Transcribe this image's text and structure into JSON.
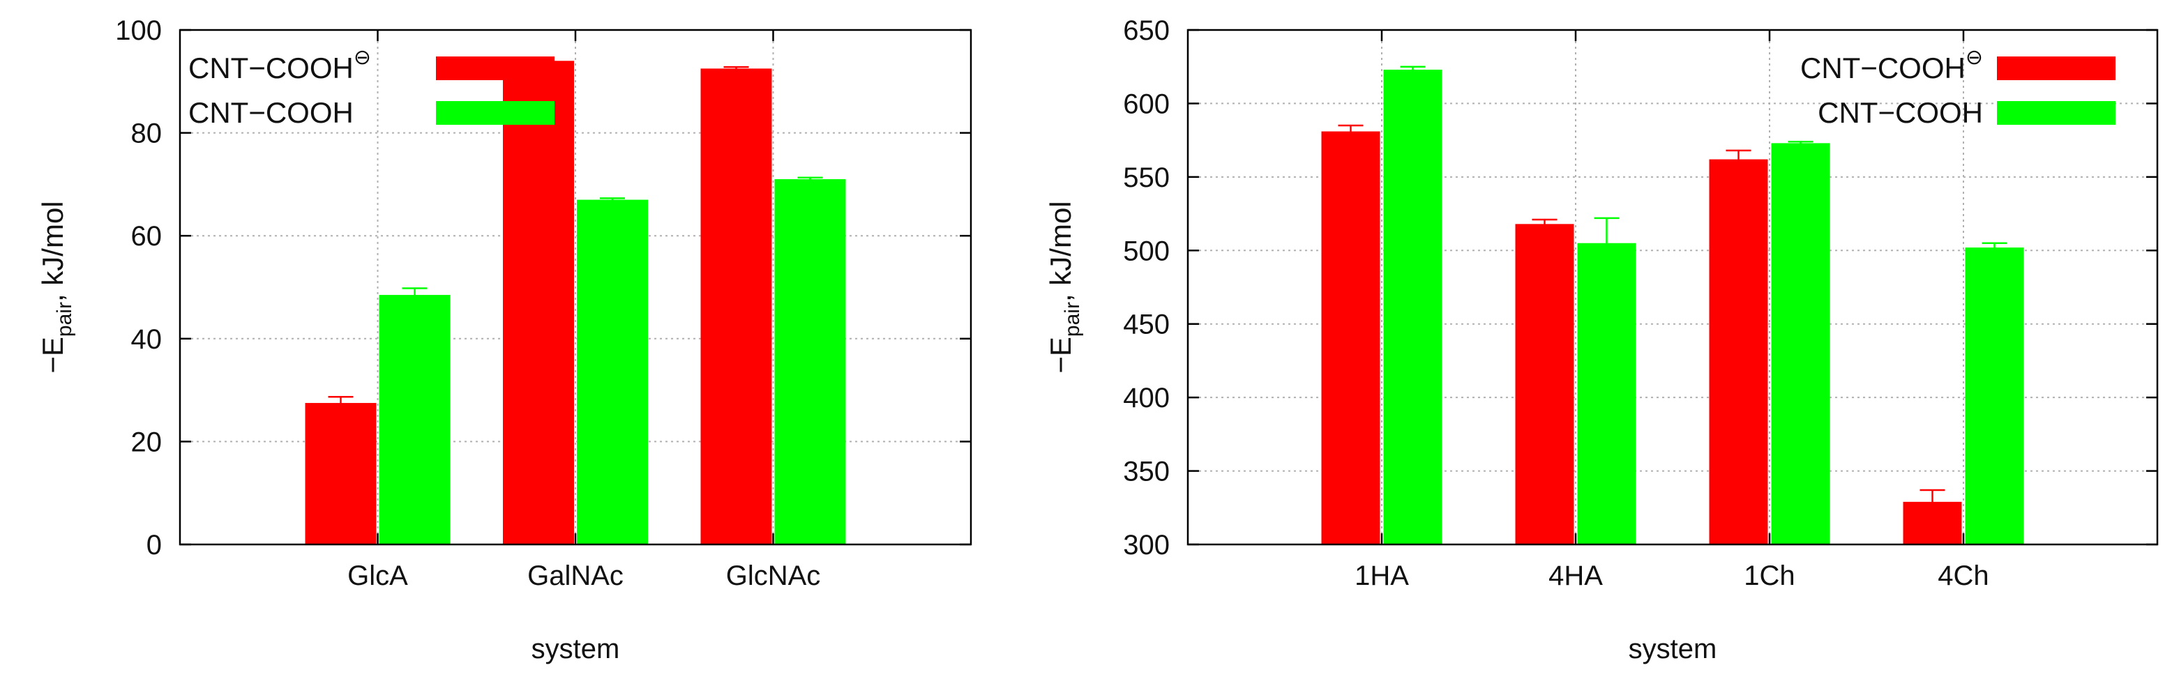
{
  "chart_data": [
    {
      "type": "bar",
      "xlabel": "system",
      "ylabel_main": "−E",
      "ylabel_sub": "pair",
      "ylabel_rest": ", kJ/mol",
      "ylim": [
        0,
        100
      ],
      "yticks": [
        0,
        20,
        40,
        60,
        80,
        100
      ],
      "xlim": [
        0,
        4
      ],
      "categories": [
        "GlcA",
        "GalNAc",
        "GlcNAc"
      ],
      "grid": true,
      "legend_position": "top-left",
      "series": [
        {
          "name": "CNT−COOH",
          "name_sup": "⊖",
          "color": "#ff0000",
          "values": [
            27.5,
            94,
            92.5
          ],
          "errors": [
            1.2,
            0.3,
            0.3
          ]
        },
        {
          "name": "CNT−COOH",
          "name_sup": "",
          "color": "#00ff00",
          "values": [
            48.5,
            67,
            71
          ],
          "errors": [
            1.3,
            0.3,
            0.3
          ]
        }
      ]
    },
    {
      "type": "bar",
      "xlabel": "system",
      "ylabel_main": "−E",
      "ylabel_sub": "pair",
      "ylabel_rest": ", kJ/mol",
      "ylim": [
        300,
        650
      ],
      "yticks": [
        300,
        350,
        400,
        450,
        500,
        550,
        600,
        650
      ],
      "xlim": [
        0,
        5
      ],
      "categories": [
        "1HA",
        "4HA",
        "1Ch",
        "4Ch"
      ],
      "grid": true,
      "legend_position": "top-right",
      "series": [
        {
          "name": "CNT−COOH",
          "name_sup": "⊖",
          "color": "#ff0000",
          "values": [
            581,
            518,
            562,
            329
          ],
          "errors": [
            4,
            3,
            6,
            8
          ]
        },
        {
          "name": "CNT−COOH",
          "name_sup": "",
          "color": "#00ff00",
          "values": [
            623,
            505,
            573,
            502
          ],
          "errors": [
            2,
            17,
            1,
            3
          ]
        }
      ]
    }
  ]
}
